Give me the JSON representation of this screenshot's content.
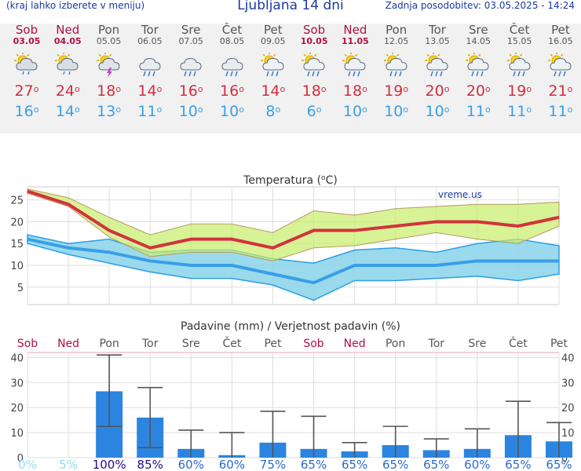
{
  "header": {
    "left": "(kraj lahko izberete v meniju)",
    "title": "Ljubljana 14 dni",
    "updated": "Zadnja posodobitev: 03.05.2025 - 14:24"
  },
  "days": [
    {
      "name": "Sob",
      "date": "03.05",
      "weekend": true,
      "icon": "partly-cloudy-rain-icon",
      "tmax": "27",
      "tmin": "16"
    },
    {
      "name": "Ned",
      "date": "04.05",
      "weekend": true,
      "icon": "partly-cloudy-rain-icon",
      "tmax": "24",
      "tmin": "14"
    },
    {
      "name": "Pon",
      "date": "05.05",
      "weekend": false,
      "icon": "thunderstorm-icon",
      "tmax": "18",
      "tmin": "13"
    },
    {
      "name": "Tor",
      "date": "06.05",
      "weekend": false,
      "icon": "cloud-rain-icon",
      "tmax": "14",
      "tmin": "11"
    },
    {
      "name": "Sre",
      "date": "07.05",
      "weekend": false,
      "icon": "cloud-rain-icon",
      "tmax": "16",
      "tmin": "10"
    },
    {
      "name": "Čet",
      "date": "08.05",
      "weekend": false,
      "icon": "cloud-rain-icon",
      "tmax": "16",
      "tmin": "10"
    },
    {
      "name": "Pet",
      "date": "09.05",
      "weekend": false,
      "icon": "sun-cloud-rain-icon",
      "tmax": "14",
      "tmin": "8"
    },
    {
      "name": "Sob",
      "date": "10.05",
      "weekend": true,
      "icon": "sun-cloud-rain-icon",
      "tmax": "18",
      "tmin": "6"
    },
    {
      "name": "Ned",
      "date": "11.05",
      "weekend": true,
      "icon": "sun-cloud-rain-icon",
      "tmax": "18",
      "tmin": "10"
    },
    {
      "name": "Pon",
      "date": "12.05",
      "weekend": false,
      "icon": "sun-cloud-rain-icon",
      "tmax": "19",
      "tmin": "10"
    },
    {
      "name": "Tor",
      "date": "13.05",
      "weekend": false,
      "icon": "sun-cloud-rain-icon",
      "tmax": "20",
      "tmin": "10"
    },
    {
      "name": "Sre",
      "date": "14.05",
      "weekend": false,
      "icon": "sun-cloud-rain-icon",
      "tmax": "20",
      "tmin": "11"
    },
    {
      "name": "Čet",
      "date": "15.05",
      "weekend": false,
      "icon": "sun-cloud-rain-icon",
      "tmax": "19",
      "tmin": "11"
    },
    {
      "name": "Pet",
      "date": "16.05",
      "weekend": false,
      "icon": "sun-cloud-rain-icon",
      "tmax": "21",
      "tmin": "11"
    }
  ],
  "colors": {
    "weekend": "#b0104a",
    "weekday": "#555555",
    "tmax": "#d03040",
    "tmin": "#3aa0e6",
    "title_blue": "#1a3aa0",
    "precip_bar": "#2b85e0"
  },
  "chart_data": [
    {
      "type": "line",
      "title": "Temperatura (°C)",
      "watermark": "vreme.us",
      "categories": [
        "Sob",
        "Ned",
        "Pon",
        "Tor",
        "Sre",
        "Čet",
        "Pet",
        "Sob",
        "Ned",
        "Pon",
        "Tor",
        "Sre",
        "Čet",
        "Pet"
      ],
      "ylim": [
        1,
        28
      ],
      "yticks": [
        5,
        10,
        15,
        20,
        25
      ],
      "grid": true,
      "series": [
        {
          "values": [
            27,
            24,
            18,
            14,
            16,
            16,
            14,
            18,
            18,
            19,
            20,
            20,
            19,
            21
          ]
        },
        {
          "values": [
            16,
            14,
            13,
            11,
            10,
            10,
            8,
            6,
            10,
            10,
            10,
            11,
            11,
            11
          ]
        }
      ],
      "max_band_upper": [
        27.5,
        25.5,
        21,
        17,
        19.5,
        19.5,
        17.5,
        22.5,
        21.5,
        23,
        23.5,
        24,
        24,
        24.5
      ],
      "max_band_lower": [
        26.5,
        23.5,
        16.5,
        12,
        13,
        13,
        11,
        14,
        14.5,
        16,
        17.5,
        16,
        15,
        19
      ],
      "min_band_upper": [
        17,
        15,
        16,
        13,
        13.5,
        13.5,
        11.5,
        10.5,
        13.5,
        14,
        13,
        15,
        16,
        14.5
      ],
      "min_band_lower": [
        15,
        12.5,
        10.5,
        8.5,
        7,
        7,
        5.5,
        2,
        6.5,
        6.5,
        7,
        7.5,
        6.5,
        8
      ]
    },
    {
      "type": "bar",
      "title": "Padavine (mm) / Verjetnost padavin (%)",
      "categories": [
        "Sob",
        "Ned",
        "Pon",
        "Tor",
        "Sre",
        "Čet",
        "Pet",
        "Sob",
        "Ned",
        "Pon",
        "Tor",
        "Sre",
        "Čet",
        "Pet"
      ],
      "values": [
        0,
        0,
        26.5,
        16,
        3.5,
        1,
        6,
        3.5,
        2.5,
        5,
        3,
        3.5,
        9,
        6.5
      ],
      "error_high": [
        0,
        0,
        41,
        28,
        11,
        10,
        18.5,
        16.5,
        6,
        12.5,
        7.5,
        11.5,
        22.5,
        14
      ],
      "error_low": [
        0,
        0,
        12.5,
        4,
        0,
        0,
        0,
        0,
        0,
        0,
        0,
        0,
        0,
        0
      ],
      "probability": [
        "0%",
        "5%",
        "100%",
        "85%",
        "60%",
        "60%",
        "75%",
        "65%",
        "65%",
        "65%",
        "65%",
        "60%",
        "65%",
        "65%"
      ],
      "ylim": [
        0,
        42
      ],
      "yticks": [
        0,
        10,
        20,
        30,
        40
      ],
      "grid": true
    }
  ]
}
